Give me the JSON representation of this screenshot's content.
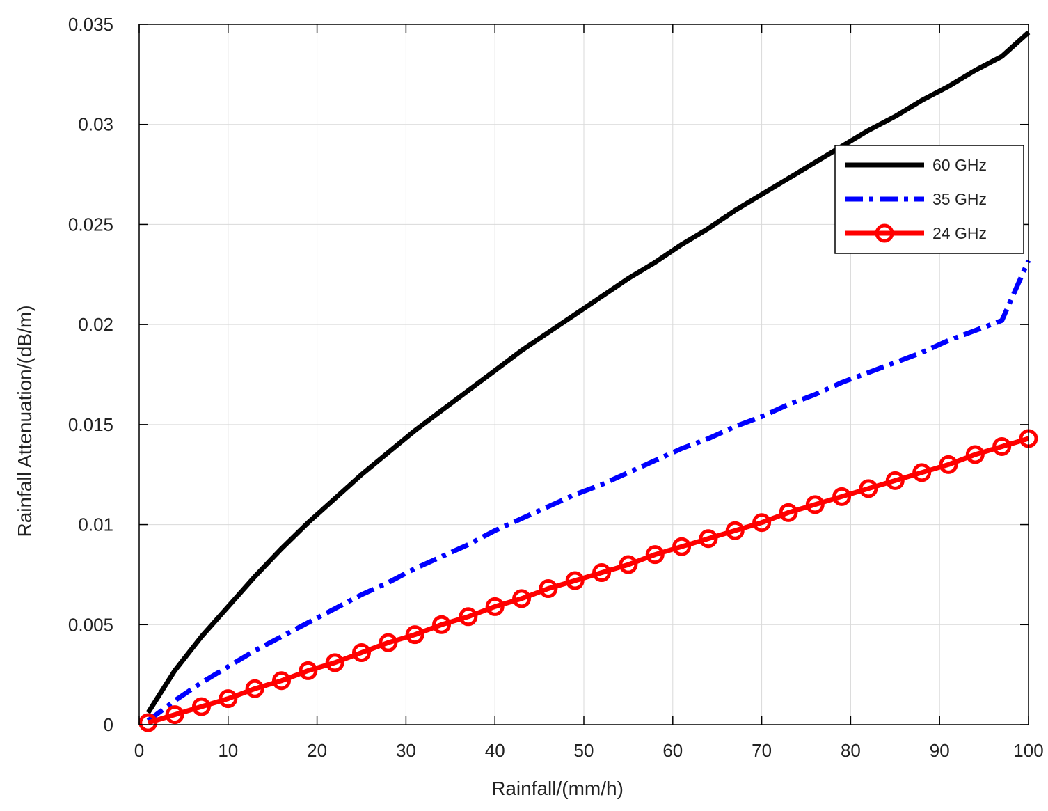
{
  "chart_data": {
    "type": "line",
    "xlabel": "Rainfall/(mm/h)",
    "ylabel": "Rainfall Attenuation/(dB/m)",
    "xlim": [
      0,
      100
    ],
    "ylim": [
      0,
      0.035
    ],
    "xticks": [
      0,
      10,
      20,
      30,
      40,
      50,
      60,
      70,
      80,
      90,
      100
    ],
    "xtick_labels": [
      "0",
      "10",
      "20",
      "30",
      "40",
      "50",
      "60",
      "70",
      "80",
      "90",
      "100"
    ],
    "yticks": [
      0,
      0.005,
      0.01,
      0.015,
      0.02,
      0.025,
      0.03,
      0.035
    ],
    "ytick_labels": [
      "0",
      "0.005",
      "0.01",
      "0.015",
      "0.02",
      "0.025",
      "0.03",
      "0.035"
    ],
    "grid": true,
    "legend_position": "top-right",
    "series": [
      {
        "name": "60 GHz",
        "color": "#000000",
        "style": "solid",
        "marker": "none",
        "x": [
          1,
          4,
          7,
          10,
          13,
          16,
          19,
          22,
          25,
          28,
          31,
          34,
          37,
          40,
          43,
          46,
          49,
          52,
          55,
          58,
          61,
          64,
          67,
          70,
          73,
          76,
          79,
          82,
          85,
          88,
          91,
          94,
          97,
          100
        ],
        "y": [
          0.0006,
          0.0027,
          0.0044,
          0.0059,
          0.0074,
          0.0088,
          0.0101,
          0.0113,
          0.0125,
          0.0136,
          0.0147,
          0.0157,
          0.0167,
          0.0177,
          0.0187,
          0.0196,
          0.0205,
          0.0214,
          0.0223,
          0.0231,
          0.024,
          0.0248,
          0.0257,
          0.0265,
          0.0273,
          0.0281,
          0.0289,
          0.0297,
          0.0304,
          0.0312,
          0.0319,
          0.0327,
          0.0334,
          0.0346
        ]
      },
      {
        "name": "35 GHz",
        "color": "#0000ff",
        "style": "dash-dot",
        "marker": "none",
        "x": [
          1,
          4,
          7,
          10,
          13,
          16,
          19,
          22,
          25,
          28,
          31,
          34,
          37,
          40,
          43,
          46,
          49,
          52,
          55,
          58,
          61,
          64,
          67,
          70,
          73,
          76,
          79,
          82,
          85,
          88,
          91,
          94,
          97,
          100
        ],
        "y": [
          0.0002,
          0.0012,
          0.0021,
          0.0029,
          0.0037,
          0.0044,
          0.0051,
          0.0058,
          0.0065,
          0.0071,
          0.0078,
          0.0084,
          0.009,
          0.0097,
          0.0103,
          0.0109,
          0.0115,
          0.012,
          0.0126,
          0.0132,
          0.0138,
          0.0143,
          0.0149,
          0.0154,
          0.016,
          0.0165,
          0.0171,
          0.0176,
          0.0181,
          0.0186,
          0.0192,
          0.0197,
          0.0202,
          0.0232
        ]
      },
      {
        "name": "24 GHz",
        "color": "#ff0000",
        "style": "solid",
        "marker": "circle",
        "x": [
          1,
          4,
          7,
          10,
          13,
          16,
          19,
          22,
          25,
          28,
          31,
          34,
          37,
          40,
          43,
          46,
          49,
          52,
          55,
          58,
          61,
          64,
          67,
          70,
          73,
          76,
          79,
          82,
          85,
          88,
          91,
          94,
          97,
          100
        ],
        "y": [
          0.0001,
          0.0005,
          0.0009,
          0.0013,
          0.0018,
          0.0022,
          0.0027,
          0.0031,
          0.0036,
          0.0041,
          0.0045,
          0.005,
          0.0054,
          0.0059,
          0.0063,
          0.0068,
          0.0072,
          0.0076,
          0.008,
          0.0085,
          0.0089,
          0.0093,
          0.0097,
          0.0101,
          0.0106,
          0.011,
          0.0114,
          0.0118,
          0.0122,
          0.0126,
          0.013,
          0.0135,
          0.0139,
          0.0143
        ]
      }
    ]
  }
}
